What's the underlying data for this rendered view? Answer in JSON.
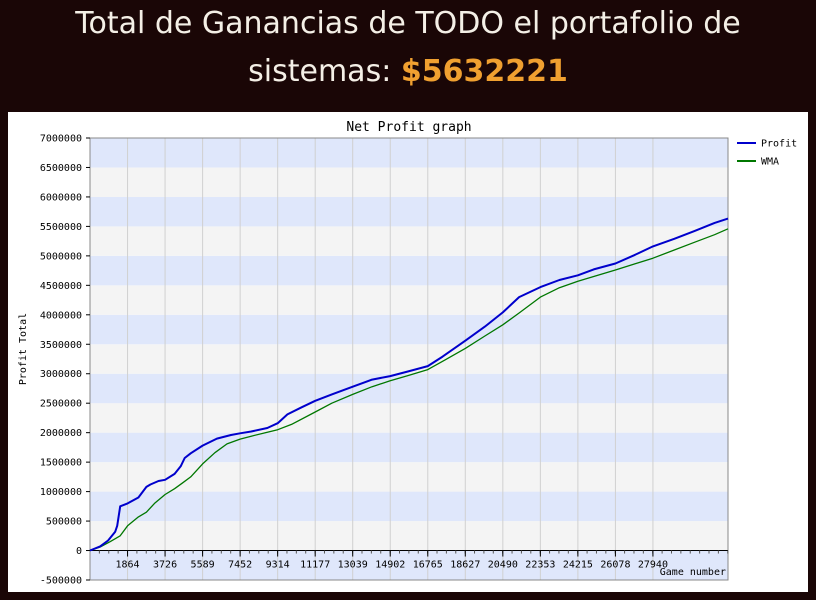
{
  "header": {
    "line1": "Total de Ganancias de TODO el portafolio de",
    "line2_prefix": "sistemas:",
    "amount": "$5632221",
    "amount_color": "#f0a030"
  },
  "chart_data": {
    "type": "line",
    "title": "Net Profit graph",
    "xlabel": "Game number",
    "ylabel": "Profit Total",
    "xlim": [
      0,
      31666
    ],
    "ylim": [
      -500000,
      7000000
    ],
    "x_ticks": [
      1864,
      3726,
      5589,
      7452,
      9314,
      11177,
      13039,
      14902,
      16765,
      18627,
      20490,
      22353,
      24215,
      26078,
      27940
    ],
    "y_ticks": [
      -500000,
      0,
      500000,
      1000000,
      1500000,
      2000000,
      2500000,
      3000000,
      3500000,
      4000000,
      4500000,
      5000000,
      5500000,
      6000000,
      6500000,
      7000000
    ],
    "legend_position": "top-right",
    "series": [
      {
        "name": "Profit",
        "color": "#0000cc",
        "x": [
          0,
          500,
          900,
          1250,
          1350,
          1500,
          1864,
          2400,
          2800,
          3000,
          3400,
          3726,
          4200,
          4500,
          4700,
          5000,
          5589,
          6300,
          7000,
          7452,
          8000,
          8800,
          9314,
          9800,
          10500,
          11177,
          12000,
          13039,
          14000,
          14902,
          15800,
          16765,
          17500,
          18627,
          19600,
          20490,
          21300,
          22353,
          23300,
          24215,
          25000,
          26078,
          27000,
          27940,
          29000,
          30000,
          31000,
          31666
        ],
        "y": [
          0,
          70000,
          170000,
          320000,
          420000,
          750000,
          800000,
          900000,
          1080000,
          1120000,
          1180000,
          1200000,
          1300000,
          1430000,
          1570000,
          1650000,
          1780000,
          1900000,
          1960000,
          1990000,
          2020000,
          2080000,
          2160000,
          2310000,
          2430000,
          2540000,
          2650000,
          2780000,
          2900000,
          2960000,
          3040000,
          3130000,
          3290000,
          3560000,
          3800000,
          4040000,
          4300000,
          4470000,
          4590000,
          4670000,
          4770000,
          4870000,
          5010000,
          5160000,
          5290000,
          5420000,
          5560000,
          5632221
        ]
      },
      {
        "name": "WMA",
        "color": "#007700",
        "x": [
          0,
          500,
          1000,
          1500,
          1864,
          2400,
          2800,
          3200,
          3726,
          4200,
          4600,
          5000,
          5589,
          6200,
          6800,
          7452,
          8000,
          8700,
          9314,
          10000,
          11177,
          12000,
          13039,
          14000,
          14902,
          15800,
          16765,
          17600,
          18627,
          19600,
          20490,
          21300,
          22353,
          23300,
          24215,
          25000,
          26078,
          27000,
          27940,
          29000,
          30000,
          31000,
          31666
        ],
        "y": [
          0,
          60000,
          150000,
          250000,
          420000,
          570000,
          650000,
          800000,
          950000,
          1050000,
          1150000,
          1250000,
          1470000,
          1660000,
          1810000,
          1890000,
          1940000,
          2000000,
          2050000,
          2140000,
          2350000,
          2500000,
          2650000,
          2780000,
          2880000,
          2970000,
          3070000,
          3230000,
          3430000,
          3640000,
          3830000,
          4030000,
          4300000,
          4460000,
          4570000,
          4650000,
          4760000,
          4860000,
          4960000,
          5100000,
          5230000,
          5360000,
          5460000
        ]
      }
    ]
  }
}
